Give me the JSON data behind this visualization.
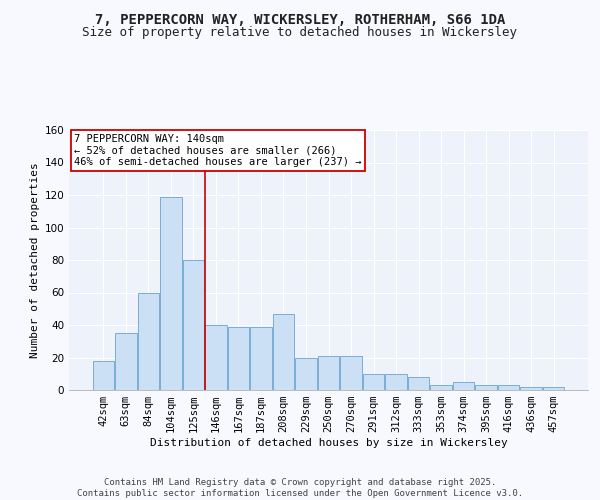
{
  "title_line1": "7, PEPPERCORN WAY, WICKERSLEY, ROTHERHAM, S66 1DA",
  "title_line2": "Size of property relative to detached houses in Wickersley",
  "xlabel": "Distribution of detached houses by size in Wickersley",
  "ylabel": "Number of detached properties",
  "categories": [
    "42sqm",
    "63sqm",
    "84sqm",
    "104sqm",
    "125sqm",
    "146sqm",
    "167sqm",
    "187sqm",
    "208sqm",
    "229sqm",
    "250sqm",
    "270sqm",
    "291sqm",
    "312sqm",
    "333sqm",
    "353sqm",
    "374sqm",
    "395sqm",
    "416sqm",
    "436sqm",
    "457sqm"
  ],
  "values": [
    18,
    35,
    60,
    119,
    80,
    40,
    39,
    39,
    47,
    20,
    21,
    21,
    10,
    10,
    8,
    3,
    5,
    3,
    3,
    2,
    2
  ],
  "bar_color": "#cce0f5",
  "bar_edge_color": "#7aadd4",
  "background_color": "#eef2fb",
  "grid_color": "#ffffff",
  "annotation_text": "7 PEPPERCORN WAY: 140sqm\n← 52% of detached houses are smaller (266)\n46% of semi-detached houses are larger (237) →",
  "annotation_box_color": "#ffffff",
  "annotation_box_edge": "#cc0000",
  "vline_color": "#cc0000",
  "ylim": [
    0,
    160
  ],
  "yticks": [
    0,
    20,
    40,
    60,
    80,
    100,
    120,
    140,
    160
  ],
  "footer_text": "Contains HM Land Registry data © Crown copyright and database right 2025.\nContains public sector information licensed under the Open Government Licence v3.0.",
  "title_fontsize": 10,
  "subtitle_fontsize": 9,
  "axis_label_fontsize": 8,
  "tick_fontsize": 7.5,
  "annotation_fontsize": 7.5,
  "footer_fontsize": 6.5
}
